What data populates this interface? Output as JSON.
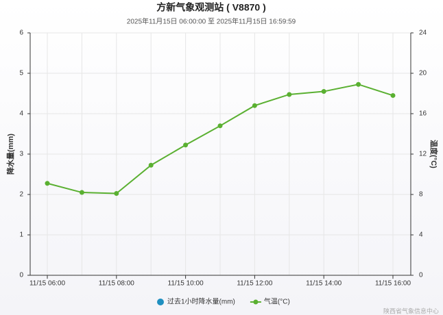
{
  "chart_data": {
    "type": "line",
    "title": "方新气象观测站 ( V8870 )",
    "subtitle": "2025年11月15日 06:00:00 至 2025年11月15日 16:59:59",
    "ylabel": "降水量(mm)",
    "y2label": "温度(°C)",
    "footer": "陕西省气象信息中心",
    "categories": [
      "11/15 06:00",
      null,
      "11/15 08:00",
      null,
      "11/15 10:00",
      null,
      "11/15 12:00",
      null,
      "11/15 14:00",
      null,
      "11/15 16:00"
    ],
    "series": [
      {
        "name": "过去1小时降水量(mm)",
        "color": "#1f8fc0",
        "values": [
          null,
          null,
          null,
          null,
          null,
          null,
          null,
          null,
          null,
          null,
          null
        ]
      },
      {
        "name": "气温(°C)",
        "color": "#5ab031",
        "axis": "y2",
        "values": [
          9.1,
          8.2,
          8.1,
          10.9,
          12.9,
          14.8,
          16.8,
          17.9,
          18.2,
          18.9,
          17.8
        ]
      }
    ],
    "ylim": [
      0,
      6
    ],
    "yticks": [
      0,
      1,
      2,
      3,
      4,
      5,
      6
    ],
    "y2lim": [
      0,
      24
    ],
    "y2ticks": [
      0,
      4,
      8,
      12,
      16,
      20,
      24
    ],
    "grid": true
  }
}
